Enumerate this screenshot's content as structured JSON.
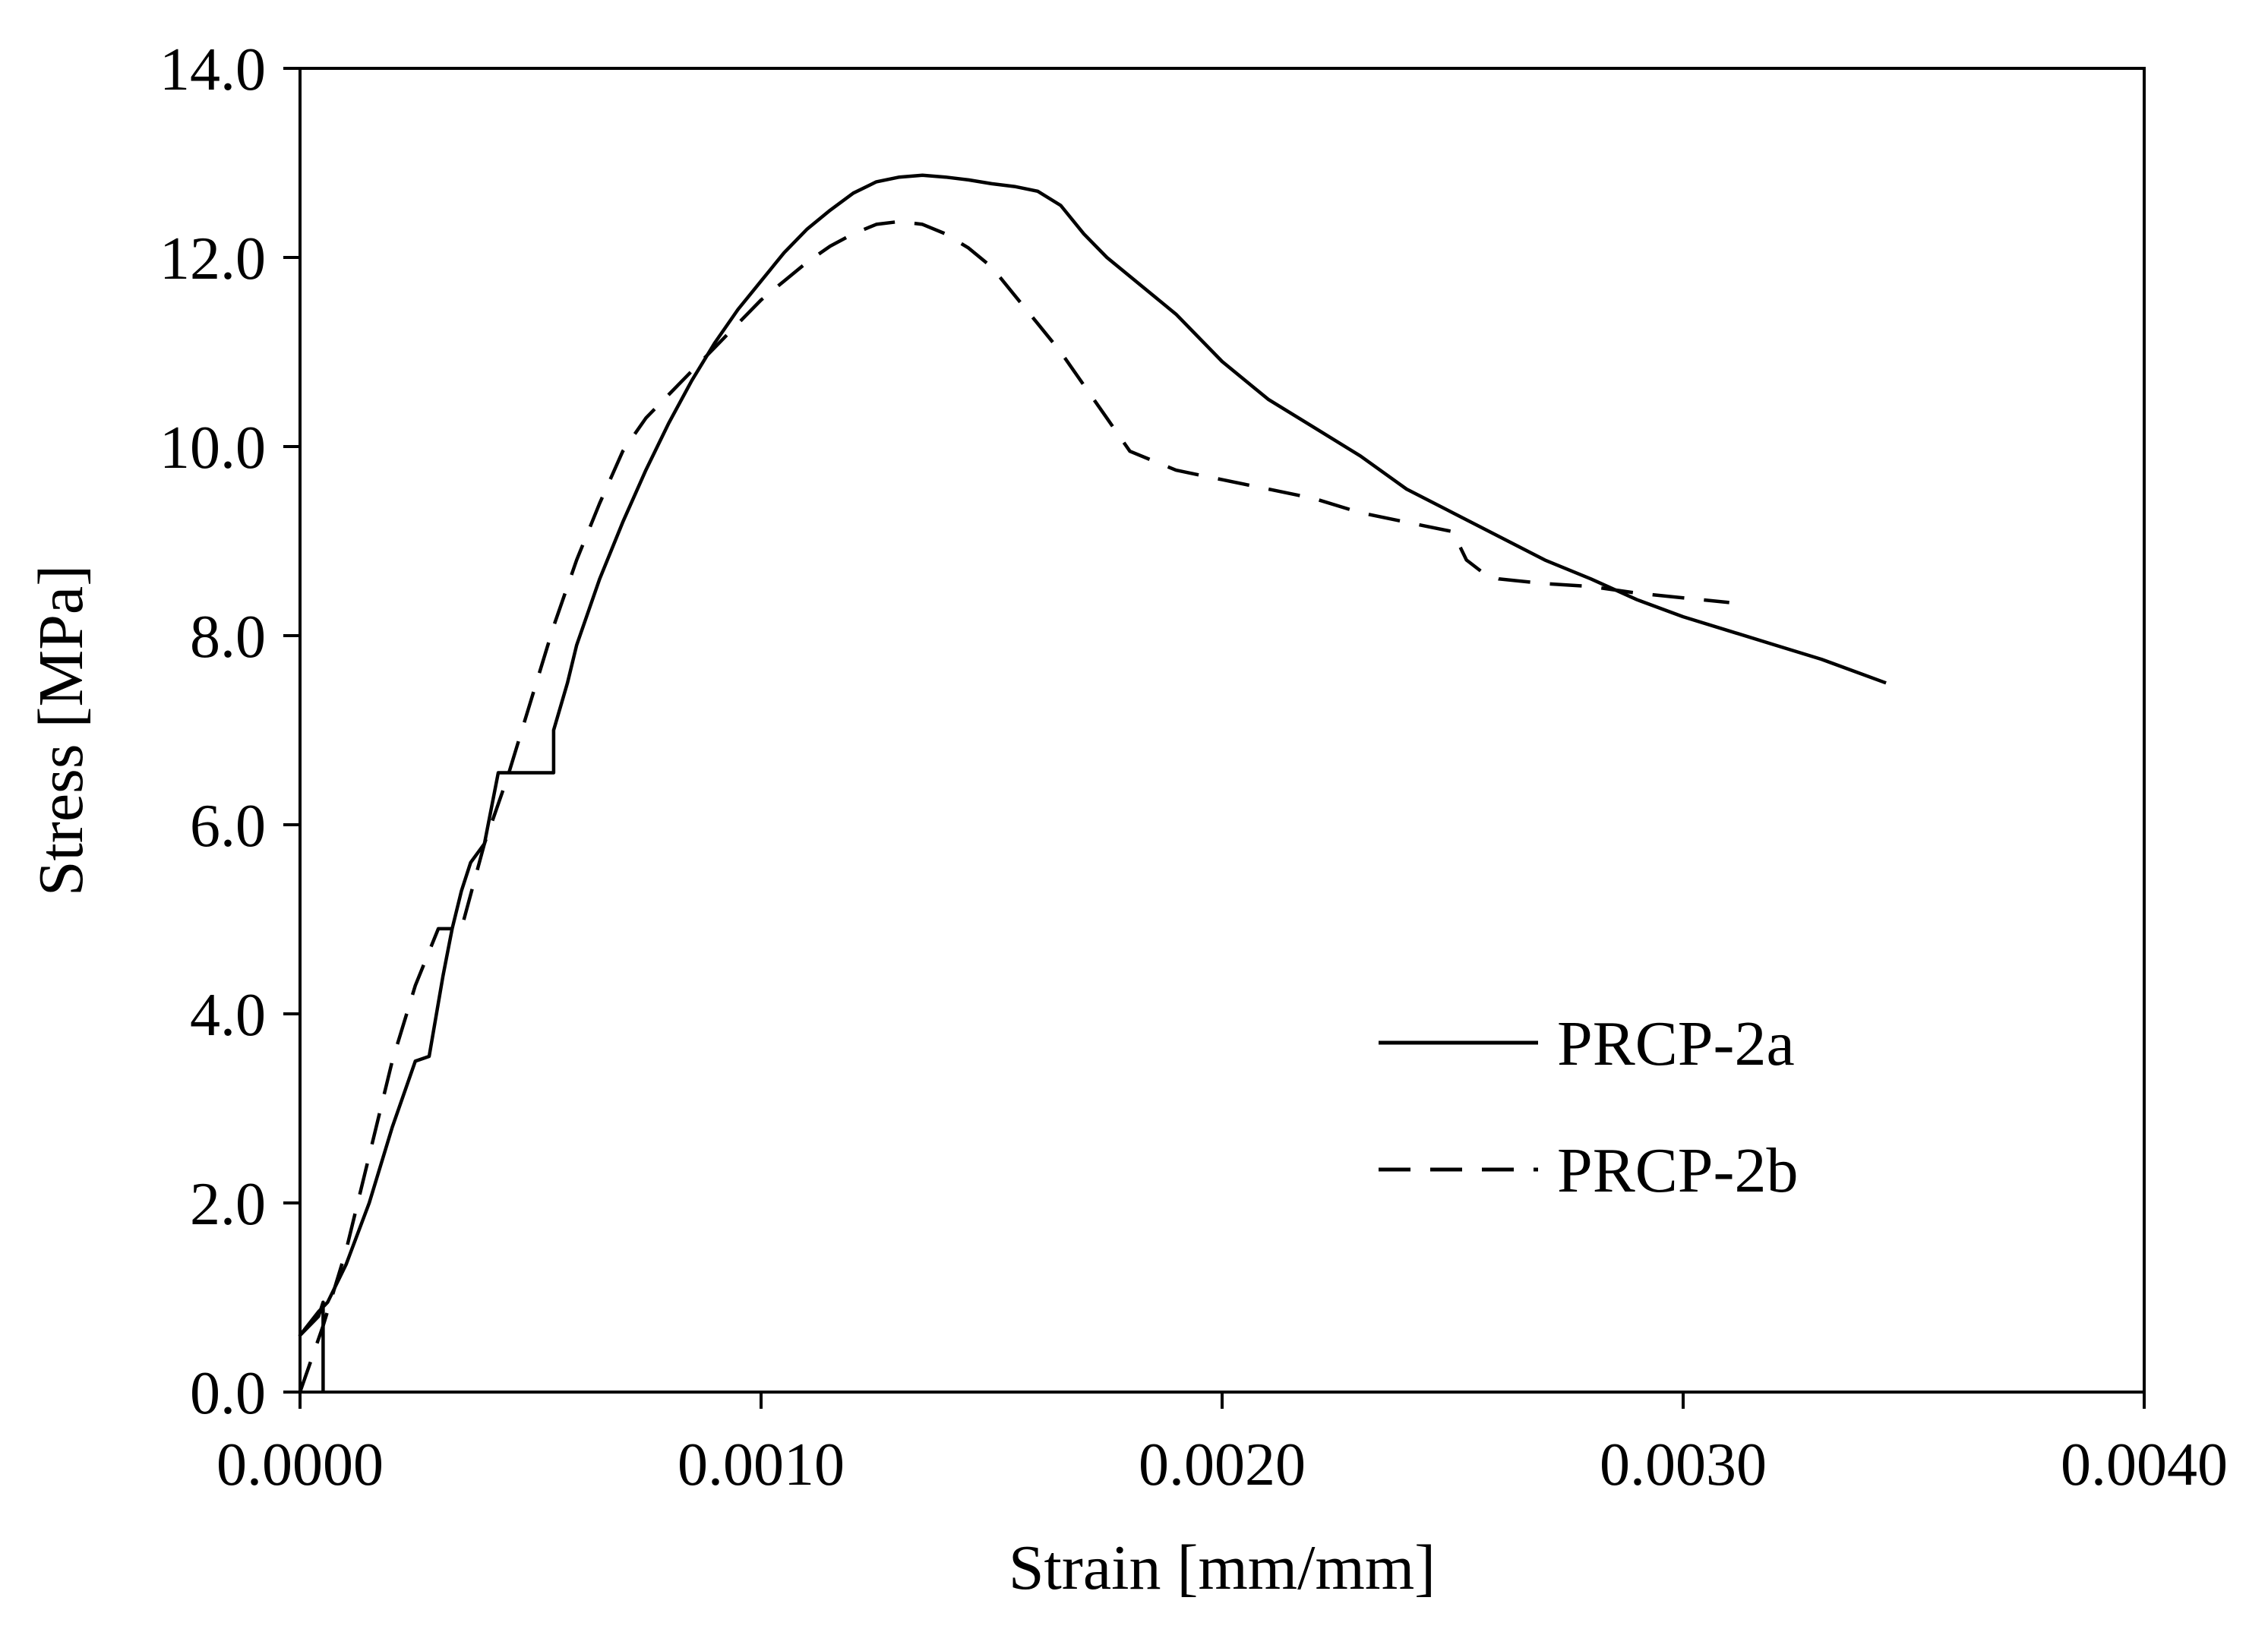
{
  "chart_data": {
    "type": "line",
    "title": "",
    "xlabel": "Strain [mm/mm]",
    "ylabel": "Stress [MPa]",
    "xlim": [
      0,
      0.004
    ],
    "ylim": [
      0,
      14
    ],
    "xticks": [
      0,
      0.001,
      0.002,
      0.003,
      0.004
    ],
    "xtick_labels": [
      "0.0000",
      "0.0010",
      "0.0020",
      "0.0030",
      "0.0040"
    ],
    "yticks": [
      0,
      2,
      4,
      6,
      8,
      10,
      12,
      14
    ],
    "ytick_labels": [
      "0.0",
      "2.0",
      "4.0",
      "6.0",
      "8.0",
      "10.0",
      "12.0",
      "14.0"
    ],
    "grid": false,
    "legend_position": "lower-right",
    "series": [
      {
        "name": "PRCP-2a",
        "style": "solid",
        "color": "#000000",
        "x": [
          5e-05,
          5e-05,
          4e-05,
          1e-05,
          0.0,
          4e-05,
          6e-05,
          0.0001,
          0.00015,
          0.0002,
          0.00025,
          0.00028,
          0.00031,
          0.00033,
          0.00035,
          0.00037,
          0.0004,
          0.00043,
          0.00045,
          0.00047,
          0.0005,
          0.00053,
          0.00055,
          0.00055,
          0.00058,
          0.0006,
          0.00065,
          0.0007,
          0.00075,
          0.0008,
          0.00085,
          0.0009,
          0.00095,
          0.001,
          0.00105,
          0.0011,
          0.00115,
          0.0012,
          0.00125,
          0.0013,
          0.00135,
          0.0014,
          0.00145,
          0.0015,
          0.00155,
          0.0016,
          0.00165,
          0.0017,
          0.00175,
          0.0018,
          0.0019,
          0.002,
          0.0021,
          0.0022,
          0.0023,
          0.0024,
          0.0025,
          0.0026,
          0.0027,
          0.0028,
          0.0029,
          0.003,
          0.0031,
          0.0032,
          0.0033,
          0.00344
        ],
        "y": [
          0.0,
          0.95,
          0.8,
          0.65,
          0.6,
          0.85,
          0.95,
          1.35,
          2.0,
          2.8,
          3.5,
          3.55,
          4.4,
          4.9,
          5.3,
          5.6,
          5.8,
          6.55,
          6.55,
          6.55,
          6.55,
          6.55,
          6.55,
          7.0,
          7.5,
          7.9,
          8.6,
          9.2,
          9.75,
          10.25,
          10.7,
          11.1,
          11.45,
          11.75,
          12.05,
          12.3,
          12.5,
          12.68,
          12.8,
          12.85,
          12.87,
          12.85,
          12.82,
          12.78,
          12.75,
          12.7,
          12.55,
          12.25,
          12.0,
          11.8,
          11.4,
          10.9,
          10.5,
          10.2,
          9.9,
          9.55,
          9.3,
          9.05,
          8.8,
          8.6,
          8.38,
          8.2,
          8.05,
          7.9,
          7.75,
          7.5
        ]
      },
      {
        "name": "PRCP-2b",
        "style": "dashed",
        "color": "#000000",
        "x": [
          0.0,
          5e-05,
          0.0001,
          0.00015,
          0.0002,
          0.00025,
          0.0003,
          0.00033,
          0.00035,
          0.0004,
          0.00045,
          0.0005,
          0.00055,
          0.0006,
          0.00065,
          0.0007,
          0.00075,
          0.0008,
          0.00085,
          0.0009,
          0.00095,
          0.001,
          0.00105,
          0.0011,
          0.00115,
          0.0012,
          0.00125,
          0.0013,
          0.00135,
          0.0014,
          0.00145,
          0.0015,
          0.00155,
          0.0016,
          0.00165,
          0.0017,
          0.00175,
          0.0018,
          0.00185,
          0.0019,
          0.00195,
          0.002,
          0.0021,
          0.0022,
          0.0023,
          0.0024,
          0.0025,
          0.00253,
          0.00257,
          0.0026,
          0.0027,
          0.0028,
          0.0029,
          0.003,
          0.0031
        ],
        "y": [
          0.0,
          0.7,
          1.5,
          2.5,
          3.5,
          4.3,
          4.9,
          4.9,
          4.9,
          5.8,
          6.5,
          7.3,
          8.1,
          8.8,
          9.4,
          9.95,
          10.3,
          10.55,
          10.8,
          11.05,
          11.3,
          11.55,
          11.75,
          11.95,
          12.12,
          12.25,
          12.35,
          12.38,
          12.35,
          12.25,
          12.1,
          11.9,
          11.6,
          11.3,
          11.0,
          10.65,
          10.3,
          9.95,
          9.85,
          9.75,
          9.7,
          9.65,
          9.55,
          9.45,
          9.3,
          9.2,
          9.1,
          8.8,
          8.65,
          8.6,
          8.55,
          8.52,
          8.45,
          8.4,
          8.35
        ]
      }
    ]
  }
}
